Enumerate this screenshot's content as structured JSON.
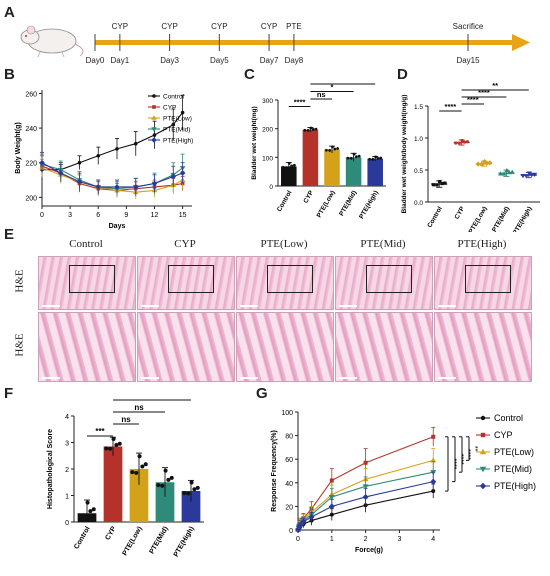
{
  "panels": {
    "A": "A",
    "B": "B",
    "C": "C",
    "D": "D",
    "E": "E",
    "F": "F",
    "G": "G"
  },
  "timeline": {
    "top_labels": [
      {
        "t": "CYP",
        "day": 1
      },
      {
        "t": "CYP",
        "day": 3
      },
      {
        "t": "CYP",
        "day": 5
      },
      {
        "t": "CYP",
        "day": 7
      },
      {
        "t": "PTE",
        "day": 8
      },
      {
        "t": "Sacrifice",
        "day": 15
      }
    ],
    "days": [
      "Day0",
      "Day1",
      "Day3",
      "Day5",
      "Day7",
      "Day8",
      "Day15"
    ],
    "day_values": [
      0,
      1,
      3,
      5,
      7,
      8,
      15
    ],
    "arrow_color": "#e8a317"
  },
  "series_names": [
    "Control",
    "CYP",
    "PTE(Low)",
    "PTE(Mid)",
    "PTE(High)"
  ],
  "series_colors": {
    "Control": "#111111",
    "CYP": "#b5322b",
    "PTE(Low)": "#d4a21a",
    "PTE(Mid)": "#2e8b7a",
    "PTE(High)": "#2b3a9a"
  },
  "he": {
    "groups": [
      "Control",
      "CYP",
      "PTE(Low)",
      "PTE(Mid)",
      "PTE(High)"
    ],
    "row_labels": [
      "H&E",
      "H&E"
    ]
  },
  "chart_data": [
    {
      "id": "B",
      "type": "line",
      "xlabel": "Days",
      "ylabel": "Body Weight(g)",
      "xlim": [
        0,
        16
      ],
      "ylim": [
        195,
        262
      ],
      "xticks": [
        0,
        3,
        6,
        9,
        12,
        15
      ],
      "yticks": [
        200,
        220,
        240,
        260
      ],
      "x": [
        0,
        2,
        4,
        6,
        8,
        10,
        12,
        14,
        15
      ],
      "series": [
        {
          "name": "Control",
          "values": [
            216,
            216,
            220,
            224,
            228,
            231,
            236,
            242,
            249
          ],
          "err": [
            4,
            4,
            4,
            5,
            6,
            7,
            8,
            9,
            10
          ]
        },
        {
          "name": "CYP",
          "values": [
            218,
            214,
            208,
            205,
            204,
            205,
            206,
            207,
            208
          ],
          "err": [
            6,
            5,
            5,
            4,
            4,
            4,
            4,
            4,
            4
          ]
        },
        {
          "name": "PTE(Low)",
          "values": [
            217,
            213,
            209,
            206,
            204,
            203,
            204,
            207,
            210
          ],
          "err": [
            5,
            5,
            4,
            4,
            4,
            4,
            4,
            5,
            5
          ]
        },
        {
          "name": "PTE(Mid)",
          "values": [
            219,
            216,
            210,
            206,
            205,
            206,
            208,
            213,
            217
          ],
          "err": [
            6,
            5,
            5,
            4,
            4,
            5,
            6,
            7,
            8
          ]
        },
        {
          "name": "PTE(High)",
          "values": [
            220,
            214,
            209,
            206,
            206,
            206,
            208,
            212,
            214
          ],
          "err": [
            6,
            5,
            5,
            4,
            4,
            5,
            5,
            6,
            6
          ]
        }
      ],
      "legend": [
        "Control",
        "CYP",
        "PTE(Low)",
        "PTE(Mid)",
        "PTE(High)"
      ],
      "legend_position": "top-right"
    },
    {
      "id": "C",
      "type": "bar",
      "ylabel": "Bladder wet weight(mg)",
      "categories": [
        "Control",
        "CYP",
        "PTE(Low)",
        "PTE(Mid)",
        "PTE(High)"
      ],
      "values": [
        68,
        196,
        127,
        100,
        95
      ],
      "err": [
        14,
        8,
        12,
        14,
        8
      ],
      "ylim": [
        0,
        300
      ],
      "yticks": [
        0,
        100,
        200,
        300
      ],
      "significance": [
        {
          "from": "CYP",
          "to": "Control",
          "label": "****"
        },
        {
          "from": "CYP",
          "to": "PTE(Low)",
          "label": "ns"
        },
        {
          "from": "CYP",
          "to": "PTE(Mid)",
          "label": "*"
        },
        {
          "from": "CYP",
          "to": "PTE(High)",
          "label": "**"
        }
      ]
    },
    {
      "id": "D",
      "type": "bar",
      "ylabel": "Bladder wet weight/body weight(mg/g)",
      "categories": [
        "Control",
        "CYP",
        "PTE(Low)",
        "PTE(Mid)",
        "PTE(High)"
      ],
      "values": [
        0.28,
        0.93,
        0.6,
        0.45,
        0.42
      ],
      "err": [
        0.05,
        0.04,
        0.04,
        0.05,
        0.04
      ],
      "ylim": [
        0,
        1.5
      ],
      "yticks": [
        0.0,
        0.5,
        1.0,
        1.5
      ],
      "significance": [
        {
          "from": "CYP",
          "to": "Control",
          "label": "****"
        },
        {
          "from": "CYP",
          "to": "PTE(Low)",
          "label": "****"
        },
        {
          "from": "CYP",
          "to": "PTE(Mid)",
          "label": "****"
        },
        {
          "from": "CYP",
          "to": "PTE(High)",
          "label": "**"
        }
      ]
    },
    {
      "id": "F",
      "type": "bar",
      "ylabel": "Histopathological Score",
      "categories": [
        "Control",
        "CYP",
        "PTE(Low)",
        "PTE(Mid)",
        "PTE(High)"
      ],
      "values": [
        0.33,
        2.85,
        2.0,
        1.5,
        1.17
      ],
      "err": [
        0.5,
        0.35,
        0.6,
        0.55,
        0.4
      ],
      "ylim": [
        0,
        4
      ],
      "yticks": [
        0,
        1,
        2,
        3,
        4
      ],
      "significance": [
        {
          "from": "CYP",
          "to": "Control",
          "label": "***"
        },
        {
          "from": "CYP",
          "to": "PTE(Low)",
          "label": "ns"
        },
        {
          "from": "CYP",
          "to": "PTE(Mid)",
          "label": "ns"
        },
        {
          "from": "CYP",
          "to": "PTE(High)",
          "label": "*"
        }
      ]
    },
    {
      "id": "G",
      "type": "line",
      "xlabel": "Force(g)",
      "ylabel": "Response Frequency(%)",
      "xlim": [
        0,
        4.2
      ],
      "ylim": [
        0,
        100
      ],
      "xticks": [
        0,
        1,
        2,
        3,
        4
      ],
      "yticks": [
        0,
        20,
        40,
        60,
        80,
        100
      ],
      "x": [
        0.008,
        0.02,
        0.04,
        0.07,
        0.16,
        0.4,
        1,
        2,
        4
      ],
      "series": [
        {
          "name": "Control",
          "values": [
            0,
            1,
            2,
            3,
            5,
            8,
            13,
            21,
            33
          ],
          "err": [
            0,
            1,
            2,
            2,
            3,
            4,
            5,
            6,
            6
          ]
        },
        {
          "name": "CYP",
          "values": [
            0,
            3,
            5,
            7,
            10,
            18,
            42,
            57,
            79
          ],
          "err": [
            0,
            2,
            3,
            3,
            4,
            6,
            10,
            12,
            8
          ]
        },
        {
          "name": "PTE(Low)",
          "values": [
            0,
            2,
            4,
            6,
            9,
            15,
            30,
            43,
            59
          ],
          "err": [
            0,
            2,
            3,
            3,
            4,
            5,
            8,
            9,
            10
          ]
        },
        {
          "name": "PTE(Mid)",
          "values": [
            0,
            2,
            3,
            5,
            8,
            13,
            28,
            37,
            49
          ],
          "err": [
            0,
            1,
            2,
            3,
            3,
            5,
            7,
            8,
            9
          ]
        },
        {
          "name": "PTE(High)",
          "values": [
            0,
            1,
            3,
            4,
            7,
            11,
            20,
            28,
            41
          ],
          "err": [
            0,
            1,
            2,
            2,
            3,
            4,
            6,
            7,
            8
          ]
        }
      ],
      "legend": [
        "Control",
        "CYP",
        "PTE(Low)",
        "PTE(Mid)",
        "PTE(High)"
      ],
      "legend_position": "right",
      "significance": [
        {
          "label": "****"
        },
        {
          "label": "****"
        },
        {
          "label": "****"
        },
        {
          "label": "**"
        }
      ]
    }
  ]
}
